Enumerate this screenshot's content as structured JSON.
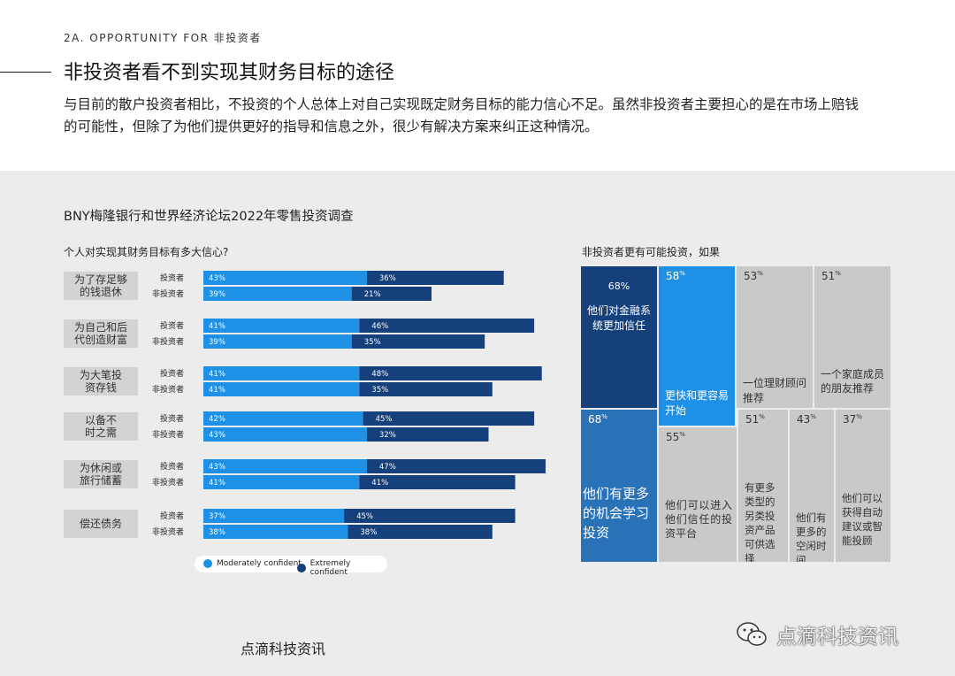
{
  "header": {
    "section_tag": "2A. OPPORTUNITY FOR 非投资者",
    "title": "非投资者看不到实现其财务目标的途径",
    "intro": "与目前的散户投资者相比，不投资的个人总体上对自己实现既定财务目标的能力信心不足。虽然非投资者主要担心的是在市场上赔钱的可能性，但除了为他们提供更好的指导和信息之外，很少有解决方案来纠正这种情况。"
  },
  "chart_main_title": "BNY梅隆银行和世界经济论坛2022年零售投资调查",
  "chart_data": [
    {
      "type": "bar",
      "orientation": "horizontal",
      "stacked": true,
      "title": "个人对实现其财务目标有多大信心?",
      "unit": "%",
      "series_names": [
        "Moderately confident",
        "Extremely confident"
      ],
      "colors": {
        "moderately": "#1e90e6",
        "extremely": "#15407c"
      },
      "groups": [
        {
          "category": "为了存足够的钱退休",
          "rows": [
            {
              "label": "投资者",
              "moderately": 43,
              "extremely": 36
            },
            {
              "label": "非投资者",
              "moderately": 39,
              "extremely": 21
            }
          ]
        },
        {
          "category": "为自己和后代创造财富",
          "rows": [
            {
              "label": "投资者",
              "moderately": 41,
              "extremely": 46
            },
            {
              "label": "非投资者",
              "moderately": 39,
              "extremely": 35
            }
          ]
        },
        {
          "category": "为大笔投资存钱",
          "rows": [
            {
              "label": "投资者",
              "moderately": 41,
              "extremely": 48
            },
            {
              "label": "非投资者",
              "moderately": 41,
              "extremely": 35
            }
          ]
        },
        {
          "category": "以备不时之需",
          "rows": [
            {
              "label": "投资者",
              "moderately": 42,
              "extremely": 45
            },
            {
              "label": "非投资者",
              "moderately": 43,
              "extremely": 32
            }
          ]
        },
        {
          "category": "为休闲或旅行储蓄",
          "rows": [
            {
              "label": "投资者",
              "moderately": 43,
              "extremely": 47
            },
            {
              "label": "非投资者",
              "moderately": 41,
              "extremely": 41
            }
          ]
        },
        {
          "category": "偿还债务",
          "rows": [
            {
              "label": "投资者",
              "moderately": 37,
              "extremely": 45
            },
            {
              "label": "非投资者",
              "moderately": 38,
              "extremely": 38
            }
          ]
        }
      ]
    },
    {
      "type": "treemap",
      "title": "非投资者更有可能投资，如果",
      "unit": "%",
      "items": [
        {
          "value": 68,
          "text": "他们对金融系统更加信任"
        },
        {
          "value": 68,
          "text": "他们有更多的机会学习投资"
        },
        {
          "value": 58,
          "text": "更快和更容易开始"
        },
        {
          "value": 55,
          "text": "他们可以进入他们信任的投资平台"
        },
        {
          "value": 53,
          "text": "一位理财顾问推荐"
        },
        {
          "value": 51,
          "text": "一个家庭成员的朋友推荐"
        },
        {
          "value": 51,
          "text": "有更多类型的另类投资产品可供选择"
        },
        {
          "value": 43,
          "text": "他们有更多的空闲时间"
        },
        {
          "value": 37,
          "text": "他们可以获得自动建议或智能投顾"
        }
      ]
    }
  ],
  "legend": {
    "moderately_label": "Moderately confident",
    "extremely_label": "Extremely confident"
  },
  "footer": {
    "left_text": "点滴科技资讯",
    "right_text": "点滴科技资讯",
    "logo_icon": "wechat-icon"
  }
}
